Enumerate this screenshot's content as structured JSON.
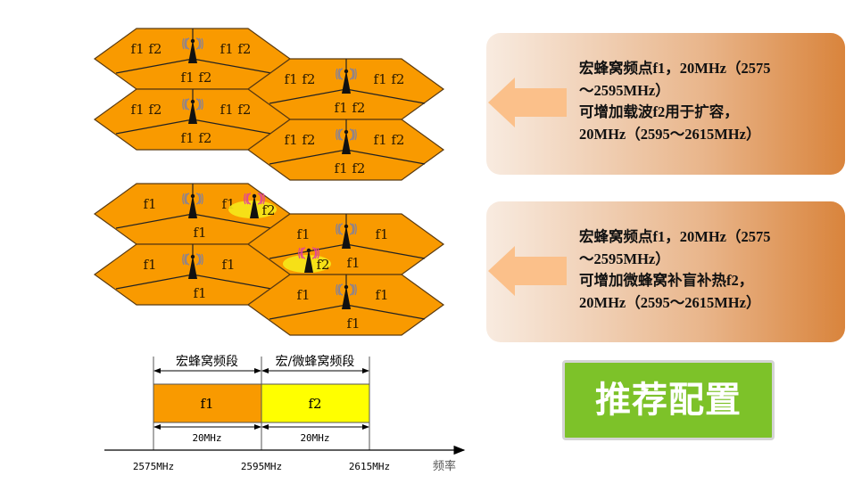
{
  "colors": {
    "macro_cell": "#f99a00",
    "small_cell": "#f5e81a",
    "band_f1": "#f99a00",
    "band_f2": "#ffff00",
    "button": "#7dc229"
  },
  "scenario_capacity": {
    "cells": [
      {
        "left": "f1  f2",
        "right": "f1  f2",
        "bottom": "f1  f2"
      },
      {
        "left": "f1 f2",
        "right": "f1  f2",
        "bottom": "f1   f2"
      },
      {
        "left": "f1  f2",
        "right": "f1  f2",
        "bottom": "f1  f2"
      },
      {
        "left": "f1 f2",
        "right": "f1  f2",
        "bottom": "f1   f2"
      }
    ],
    "icon": "cell-tower-icon"
  },
  "scenario_hotspot": {
    "cells": [
      {
        "left": "f1",
        "right": "f1",
        "bottom": "f1"
      },
      {
        "left": "f1",
        "right": "f1",
        "bottom": "f1"
      },
      {
        "left": "f1",
        "right": "f1",
        "bottom": "f1"
      },
      {
        "left": "f1",
        "right": "f1",
        "bottom": "f1"
      }
    ],
    "small_cells": [
      {
        "label": "f2"
      },
      {
        "label": "f2"
      }
    ],
    "icon": "cell-tower-icon"
  },
  "band_plan": {
    "macro_band_label": "宏蜂窝频段",
    "macro_micro_band_label": "宏/微蜂窝频段",
    "f1_label": "f1",
    "f2_label": "f2",
    "f1_width": "20MHz",
    "f2_width": "20MHz",
    "ticks": [
      "2575MHz",
      "2595MHz",
      "2615MHz"
    ],
    "axis_label": "频率"
  },
  "callouts": [
    {
      "lines": [
        "宏蜂窝频点f1，20MHz（2575",
        "～2595MHz）",
        "可增加载波f2用于扩容，",
        "20MHz（2595～2615MHz）"
      ]
    },
    {
      "lines": [
        "宏蜂窝频点f1，20MHz（2575",
        "～2595MHz）",
        "可增加微蜂窝补盲补热f2，",
        "20MHz（2595～2615MHz）"
      ]
    }
  ],
  "recommend_button": "推荐配置"
}
